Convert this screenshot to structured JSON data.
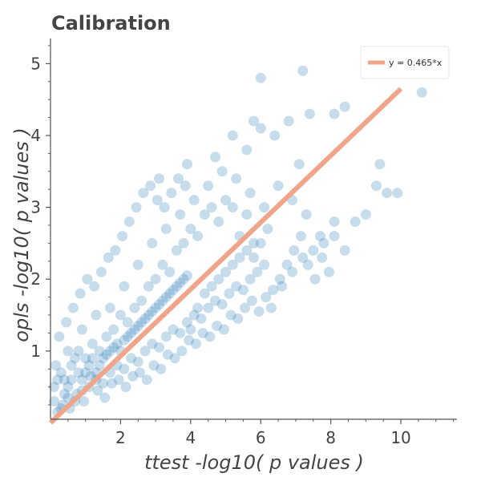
{
  "chart_data": {
    "type": "scatter",
    "title": "Calibration",
    "xlabel": "ttest -log10( p values )",
    "ylabel": "opls -log10( p values )",
    "xlim": [
      0,
      11.6
    ],
    "ylim": [
      0.05,
      5.35
    ],
    "xticks": [
      2,
      4,
      6,
      8,
      10
    ],
    "yticks": [
      1,
      2,
      3,
      4,
      5
    ],
    "grid": false,
    "legend_position": "top-right",
    "series": [
      {
        "name": "y = 0.465*x",
        "kind": "line",
        "slope": 0.465,
        "x": [
          0,
          10
        ],
        "y": [
          0,
          4.65
        ],
        "color": "#f0a48a"
      },
      {
        "kind": "scatter",
        "color": "#1f77b4",
        "opacity": 0.25,
        "points": [
          [
            0.3,
            0.2
          ],
          [
            0.5,
            0.35
          ],
          [
            0.7,
            0.3
          ],
          [
            0.9,
            0.45
          ],
          [
            1.1,
            0.5
          ],
          [
            1.3,
            0.6
          ],
          [
            1.5,
            0.55
          ],
          [
            1.7,
            0.7
          ],
          [
            1.9,
            0.8
          ],
          [
            2.1,
            0.75
          ],
          [
            2.3,
            0.9
          ],
          [
            2.5,
            0.85
          ],
          [
            2.7,
            1.0
          ],
          [
            2.9,
            1.1
          ],
          [
            3.1,
            1.05
          ],
          [
            3.3,
            1.2
          ],
          [
            3.5,
            1.3
          ],
          [
            3.7,
            1.25
          ],
          [
            3.9,
            1.4
          ],
          [
            4.1,
            1.5
          ],
          [
            4.3,
            1.45
          ],
          [
            4.5,
            1.6
          ],
          [
            4.7,
            1.7
          ],
          [
            4.9,
            1.65
          ],
          [
            5.1,
            1.8
          ],
          [
            5.3,
            1.9
          ],
          [
            5.5,
            1.85
          ],
          [
            5.7,
            2.0
          ],
          [
            5.9,
            2.1
          ],
          [
            6.1,
            2.2
          ],
          [
            0.4,
            0.6
          ],
          [
            0.6,
            0.8
          ],
          [
            0.8,
            0.7
          ],
          [
            1.0,
            0.9
          ],
          [
            1.2,
            1.1
          ],
          [
            1.4,
            1.0
          ],
          [
            1.6,
            1.2
          ],
          [
            1.8,
            1.3
          ],
          [
            2.0,
            1.5
          ],
          [
            2.2,
            1.4
          ],
          [
            2.4,
            1.6
          ],
          [
            2.6,
            1.7
          ],
          [
            2.8,
            1.9
          ],
          [
            3.0,
            2.0
          ],
          [
            3.2,
            2.2
          ],
          [
            3.4,
            2.1
          ],
          [
            3.6,
            2.4
          ],
          [
            3.8,
            2.5
          ],
          [
            4.0,
            2.7
          ],
          [
            4.2,
            2.6
          ],
          [
            4.4,
            2.9
          ],
          [
            4.6,
            3.0
          ],
          [
            4.8,
            2.8
          ],
          [
            5.0,
            3.1
          ],
          [
            5.2,
            3.0
          ],
          [
            5.4,
            2.6
          ],
          [
            5.6,
            2.9
          ],
          [
            5.8,
            2.3
          ],
          [
            6.0,
            2.5
          ],
          [
            6.2,
            2.7
          ],
          [
            0.5,
            1.0
          ],
          [
            0.9,
            1.3
          ],
          [
            1.3,
            1.5
          ],
          [
            1.7,
            1.6
          ],
          [
            2.1,
            1.9
          ],
          [
            2.5,
            2.2
          ],
          [
            2.9,
            2.5
          ],
          [
            3.3,
            2.7
          ],
          [
            3.7,
            2.9
          ],
          [
            4.1,
            3.1
          ],
          [
            4.5,
            3.3
          ],
          [
            4.9,
            3.5
          ],
          [
            5.3,
            3.4
          ],
          [
            5.7,
            3.2
          ],
          [
            6.1,
            3.0
          ],
          [
            6.5,
            3.3
          ],
          [
            6.9,
            3.1
          ],
          [
            7.3,
            2.9
          ],
          [
            7.7,
            2.6
          ],
          [
            8.1,
            2.8
          ],
          [
            6.3,
            1.6
          ],
          [
            6.6,
            1.9
          ],
          [
            6.9,
            2.1
          ],
          [
            7.2,
            2.3
          ],
          [
            7.5,
            2.4
          ],
          [
            7.8,
            2.5
          ],
          [
            8.1,
            2.6
          ],
          [
            8.4,
            2.4
          ],
          [
            8.7,
            2.8
          ],
          [
            9.0,
            2.9
          ],
          [
            3.1,
            3.4
          ],
          [
            3.9,
            3.6
          ],
          [
            4.7,
            3.7
          ],
          [
            5.2,
            4.0
          ],
          [
            5.6,
            3.8
          ],
          [
            6.0,
            4.1
          ],
          [
            6.4,
            4.0
          ],
          [
            6.8,
            4.2
          ],
          [
            7.1,
            3.6
          ],
          [
            7.4,
            4.3
          ],
          [
            7.2,
            4.9
          ],
          [
            6.0,
            4.8
          ],
          [
            5.8,
            4.2
          ],
          [
            8.4,
            4.4
          ],
          [
            8.1,
            4.3
          ],
          [
            9.3,
            3.3
          ],
          [
            9.6,
            3.2
          ],
          [
            9.9,
            3.2
          ],
          [
            10.6,
            4.6
          ],
          [
            9.4,
            3.6
          ],
          [
            0.2,
            0.15
          ],
          [
            0.35,
            0.25
          ],
          [
            0.55,
            0.2
          ],
          [
            0.75,
            0.4
          ],
          [
            0.95,
            0.3
          ],
          [
            1.15,
            0.65
          ],
          [
            1.35,
            0.45
          ],
          [
            1.55,
            0.35
          ],
          [
            1.75,
            0.55
          ],
          [
            1.95,
            0.6
          ],
          [
            2.15,
            0.5
          ],
          [
            2.35,
            0.65
          ],
          [
            2.55,
            0.7
          ],
          [
            2.75,
            0.6
          ],
          [
            2.95,
            0.8
          ],
          [
            3.15,
            0.75
          ],
          [
            3.35,
            0.95
          ],
          [
            3.55,
            0.9
          ],
          [
            3.75,
            1.0
          ],
          [
            3.95,
            1.15
          ],
          [
            4.15,
            1.1
          ],
          [
            4.35,
            1.25
          ],
          [
            4.55,
            1.2
          ],
          [
            4.75,
            1.35
          ],
          [
            4.95,
            1.3
          ],
          [
            5.15,
            1.5
          ],
          [
            5.35,
            1.45
          ],
          [
            5.55,
            1.6
          ],
          [
            5.75,
            1.7
          ],
          [
            5.95,
            1.55
          ],
          [
            6.15,
            1.75
          ],
          [
            6.35,
            1.85
          ],
          [
            6.55,
            2.0
          ],
          [
            6.75,
            2.2
          ],
          [
            6.95,
            2.4
          ],
          [
            7.15,
            2.6
          ],
          [
            7.35,
            2.2
          ],
          [
            7.55,
            2.0
          ],
          [
            7.75,
            2.3
          ],
          [
            7.95,
            2.1
          ],
          [
            0.15,
            0.8
          ],
          [
            0.25,
            1.2
          ],
          [
            0.45,
            1.4
          ],
          [
            0.65,
            1.6
          ],
          [
            0.85,
            1.8
          ],
          [
            1.05,
            2.0
          ],
          [
            1.25,
            1.9
          ],
          [
            1.45,
            2.1
          ],
          [
            1.65,
            2.3
          ],
          [
            1.85,
            2.4
          ],
          [
            2.05,
            2.6
          ],
          [
            2.25,
            2.8
          ],
          [
            2.45,
            3.0
          ],
          [
            2.65,
            3.2
          ],
          [
            2.85,
            3.3
          ],
          [
            3.05,
            3.1
          ],
          [
            3.25,
            3.0
          ],
          [
            3.45,
            3.2
          ],
          [
            3.65,
            3.4
          ],
          [
            3.85,
            3.3
          ],
          [
            0.1,
            0.5
          ],
          [
            0.1,
            0.3
          ],
          [
            0.2,
            0.6
          ],
          [
            0.3,
            0.7
          ],
          [
            0.4,
            0.4
          ],
          [
            0.5,
            0.5
          ],
          [
            0.6,
            0.6
          ],
          [
            0.7,
            0.9
          ],
          [
            0.8,
            1.0
          ],
          [
            0.9,
            0.6
          ],
          [
            1.0,
            0.7
          ],
          [
            1.1,
            0.8
          ],
          [
            1.2,
            0.9
          ],
          [
            1.3,
            0.7
          ],
          [
            1.4,
            0.8
          ],
          [
            1.5,
            0.9
          ],
          [
            1.6,
            0.95
          ],
          [
            1.7,
            1.0
          ],
          [
            1.8,
            1.05
          ],
          [
            1.9,
            1.1
          ],
          [
            2.0,
            1.0
          ],
          [
            2.1,
            1.15
          ],
          [
            2.2,
            1.2
          ],
          [
            2.3,
            1.25
          ],
          [
            2.4,
            1.3
          ],
          [
            2.5,
            1.35
          ],
          [
            2.6,
            1.4
          ],
          [
            2.7,
            1.45
          ],
          [
            2.8,
            1.5
          ],
          [
            2.9,
            1.55
          ],
          [
            3.0,
            1.6
          ],
          [
            3.1,
            1.65
          ],
          [
            3.2,
            1.7
          ],
          [
            3.3,
            1.75
          ],
          [
            3.4,
            1.8
          ],
          [
            3.5,
            1.85
          ],
          [
            3.6,
            1.9
          ],
          [
            3.7,
            1.95
          ],
          [
            3.8,
            2.0
          ],
          [
            3.9,
            2.05
          ],
          [
            4.0,
            1.3
          ],
          [
            4.2,
            1.6
          ],
          [
            4.4,
            1.8
          ],
          [
            4.6,
            1.9
          ],
          [
            4.8,
            2.0
          ],
          [
            5.0,
            2.1
          ],
          [
            5.2,
            2.2
          ],
          [
            5.4,
            2.3
          ],
          [
            5.6,
            2.4
          ],
          [
            5.8,
            2.5
          ]
        ]
      }
    ]
  }
}
